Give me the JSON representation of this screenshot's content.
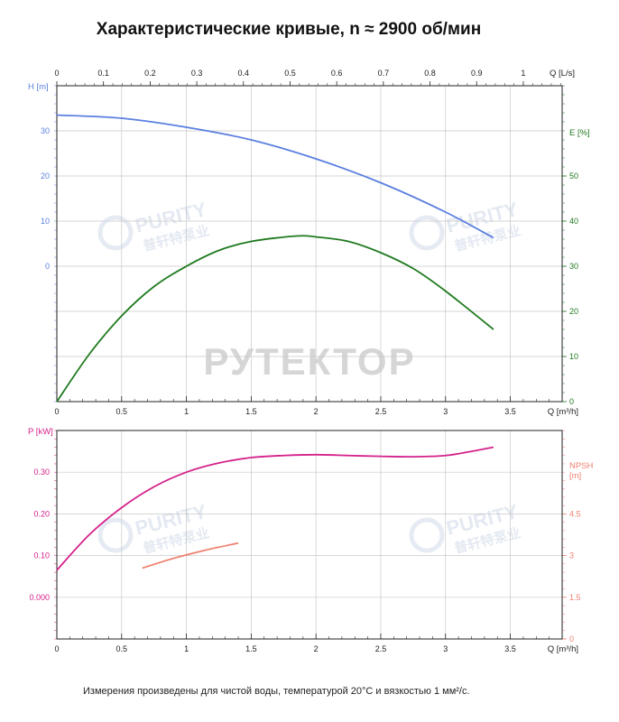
{
  "title": "Характеристические кривые, n ≈ 2900 об/мин",
  "footnote": "Измерения произведены для чистой воды, температурой 20°С и вязкостью 1 мм²/с.",
  "watermark": {
    "main": "РУТЕКТОР",
    "logo_text": "PURITY",
    "logo_sub": "普轩特泵业"
  },
  "colors": {
    "head": "#5b7fe0",
    "efficiency": "#1f7a1f",
    "power": "#d4218a",
    "npsh": "#f08070",
    "grid": "#c8c8c8",
    "axis": "#222222"
  },
  "chart_data": [
    {
      "type": "line",
      "x_axis": {
        "label": "Q [m³/h]",
        "ticks": [
          "0",
          "0.5",
          "1",
          "1.5",
          "2",
          "2.5",
          "3",
          "3.5"
        ],
        "range": [
          0,
          3.9
        ]
      },
      "x2_axis": {
        "label": "Q [L/s]",
        "ticks": [
          "0",
          "0.1",
          "0.2",
          "0.3",
          "0.4",
          "0.5",
          "0.6",
          "0.7",
          "0.8",
          "0.9",
          "1"
        ],
        "range": [
          0,
          1.0833
        ]
      },
      "y_axis": {
        "label": "H [m]",
        "ticks": [
          "0",
          "10",
          "20",
          "30"
        ],
        "range": [
          -30,
          40
        ]
      },
      "y2_axis": {
        "label": "E [%]",
        "ticks": [
          "0",
          "10",
          "20",
          "30",
          "40",
          "50"
        ],
        "range": [
          0,
          70
        ]
      },
      "grid": true,
      "series": [
        {
          "name": "H",
          "axis": "left",
          "x": [
            0,
            0.5,
            1,
            1.5,
            2,
            2.5,
            3,
            3.37
          ],
          "y": [
            33.5,
            32.8,
            30.8,
            28,
            23.8,
            18.5,
            12,
            6.3
          ]
        },
        {
          "name": "E",
          "axis": "right",
          "x": [
            0,
            0.25,
            0.5,
            0.75,
            1,
            1.25,
            1.5,
            1.85,
            2,
            2.25,
            2.5,
            2.75,
            3,
            3.37
          ],
          "y": [
            0,
            10.5,
            19,
            25.5,
            30,
            33.5,
            35.5,
            36.7,
            36.5,
            35.5,
            33,
            29.5,
            24.5,
            16
          ]
        }
      ]
    },
    {
      "type": "line",
      "x_axis": {
        "label": "Q [m³/h]",
        "ticks": [
          "0",
          "0.5",
          "1",
          "1.5",
          "2",
          "2.5",
          "3",
          "3.5"
        ],
        "range": [
          0,
          3.9
        ]
      },
      "y_axis": {
        "label": "P [kW]",
        "ticks": [
          "0.000",
          "0.10",
          "0.20",
          "0.30"
        ],
        "range": [
          -0.1,
          0.4
        ]
      },
      "y2_axis": {
        "label": "NPSH [m]",
        "ticks": [
          "0",
          "1.5",
          "3",
          "4.5"
        ],
        "range": [
          0,
          7.5
        ]
      },
      "grid": true,
      "series": [
        {
          "name": "P",
          "axis": "left",
          "x": [
            0,
            0.25,
            0.5,
            0.75,
            1,
            1.25,
            1.5,
            1.75,
            2,
            2.25,
            2.5,
            2.75,
            3,
            3.2,
            3.37
          ],
          "y": [
            0.065,
            0.15,
            0.215,
            0.265,
            0.3,
            0.322,
            0.335,
            0.34,
            0.342,
            0.34,
            0.338,
            0.337,
            0.34,
            0.35,
            0.36
          ]
        },
        {
          "name": "NPSH",
          "axis": "right",
          "x": [
            0.66,
            0.9,
            1.15,
            1.4
          ],
          "y": [
            2.55,
            2.9,
            3.2,
            3.45
          ]
        }
      ]
    }
  ]
}
